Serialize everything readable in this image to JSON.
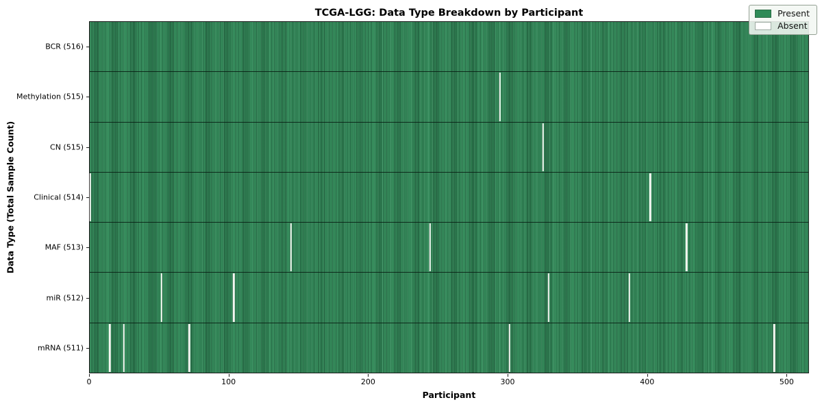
{
  "chart_data": {
    "type": "heatmap",
    "title": "TCGA-LGG: Data Type Breakdown by Participant",
    "xlabel": "Participant",
    "ylabel": "Data Type (Total Sample Count)",
    "n_participants": 516,
    "x_ticks": [
      0,
      100,
      200,
      300,
      400,
      500
    ],
    "legend_position": "upper right",
    "grid": false,
    "colors": {
      "present": "#2e8b57",
      "absent": "#ffffff",
      "bar_edge": "#0a2a18",
      "spine": "#1a1a1a"
    },
    "legend": [
      {
        "label": "Present",
        "color": "#2e8b57"
      },
      {
        "label": "Absent",
        "color": "#ffffff"
      }
    ],
    "rows": [
      {
        "label": "BCR (516)",
        "name": "BCR",
        "count": 516,
        "absent_participants": []
      },
      {
        "label": "Methylation (515)",
        "name": "Methylation",
        "count": 515,
        "absent_participants": [
          294
        ]
      },
      {
        "label": "CN (515)",
        "name": "CN",
        "count": 515,
        "absent_participants": [
          325
        ]
      },
      {
        "label": "Clinical (514)",
        "name": "Clinical",
        "count": 514,
        "absent_participants": [
          0,
          402
        ]
      },
      {
        "label": "MAF (513)",
        "name": "MAF",
        "count": 513,
        "absent_participants": [
          144,
          244,
          428
        ]
      },
      {
        "label": "miR (512)",
        "name": "miR",
        "count": 512,
        "absent_participants": [
          51,
          103,
          329,
          387
        ]
      },
      {
        "label": "mRNA (511)",
        "name": "mRNA",
        "count": 511,
        "absent_participants": [
          14,
          24,
          71,
          301,
          491
        ]
      }
    ]
  }
}
